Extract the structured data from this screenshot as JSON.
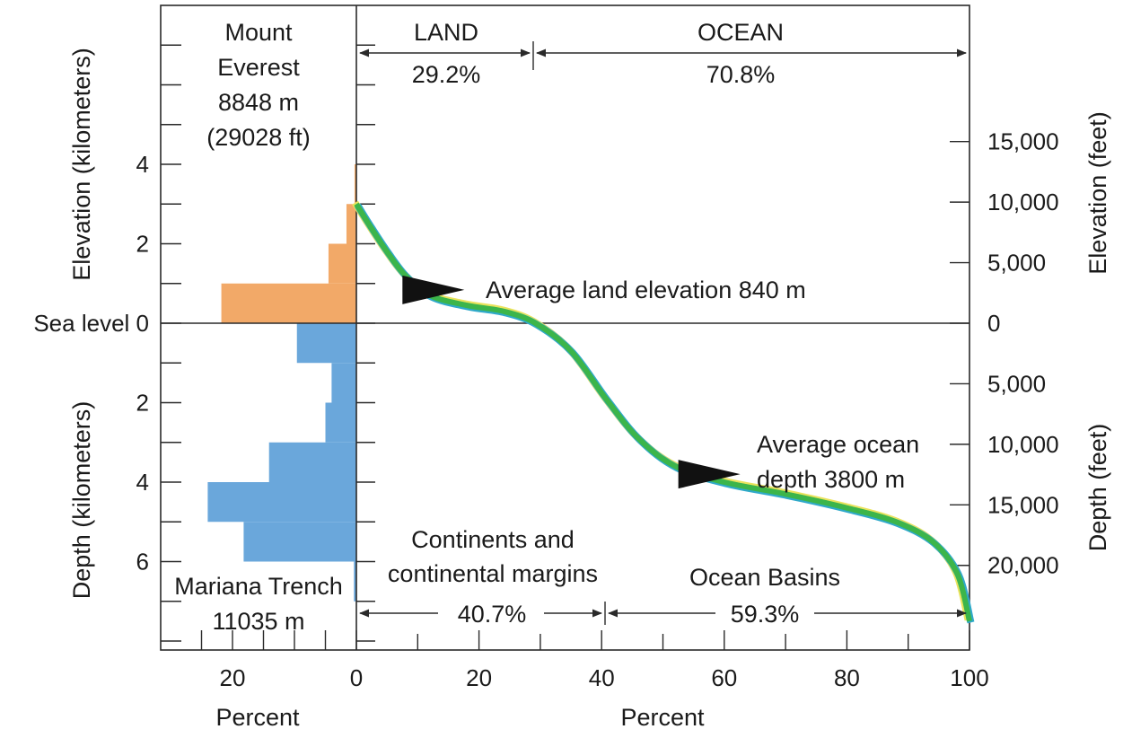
{
  "colors": {
    "land": "#f2a968",
    "ocean": "#6aa7db",
    "curve": "#3cb54a",
    "curve_edge_top": "#e9e35c",
    "curve_edge_bottom": "#2fa9c9",
    "axis": "#2a2a2a",
    "marker": "#111111"
  },
  "chart_data": {
    "type": "area",
    "title": "",
    "left_histogram": {
      "xlabel": "Percent",
      "x_ticks": [
        20,
        0
      ],
      "xlim": [
        30,
        0
      ],
      "bin_size_km": 1,
      "land": [
        {
          "from_km": 0,
          "to_km": 1,
          "percent": 21.8
        },
        {
          "from_km": 1,
          "to_km": 2,
          "percent": 4.5
        },
        {
          "from_km": 2,
          "to_km": 3,
          "percent": 1.6
        },
        {
          "from_km": 3,
          "to_km": 4,
          "percent": 0.3
        }
      ],
      "ocean": [
        {
          "from_km": 0,
          "to_km": 1,
          "percent": 9.6
        },
        {
          "from_km": 1,
          "to_km": 2,
          "percent": 4.0
        },
        {
          "from_km": 2,
          "to_km": 3,
          "percent": 5.0
        },
        {
          "from_km": 3,
          "to_km": 4,
          "percent": 14.1
        },
        {
          "from_km": 4,
          "to_km": 5,
          "percent": 24.0
        },
        {
          "from_km": 5,
          "to_km": 6,
          "percent": 18.2
        },
        {
          "from_km": 6,
          "to_km": 7,
          "percent": 0.4
        }
      ]
    },
    "hypsometric_curve": {
      "xlabel": "Percent",
      "xlim": [
        0,
        100
      ],
      "x_ticks": [
        0,
        20,
        40,
        60,
        80,
        100
      ],
      "points": [
        {
          "x": 0,
          "y": 3.0
        },
        {
          "x": 2,
          "y": 2.5
        },
        {
          "x": 5,
          "y": 1.8
        },
        {
          "x": 8,
          "y": 1.2
        },
        {
          "x": 12,
          "y": 0.7
        },
        {
          "x": 18,
          "y": 0.45
        },
        {
          "x": 24,
          "y": 0.3
        },
        {
          "x": 29.2,
          "y": 0.0
        },
        {
          "x": 35,
          "y": -0.7
        },
        {
          "x": 40.7,
          "y": -1.9
        },
        {
          "x": 46,
          "y": -2.9
        },
        {
          "x": 52,
          "y": -3.6
        },
        {
          "x": 60,
          "y": -4.0
        },
        {
          "x": 70,
          "y": -4.3
        },
        {
          "x": 80,
          "y": -4.65
        },
        {
          "x": 88,
          "y": -5.0
        },
        {
          "x": 94,
          "y": -5.5
        },
        {
          "x": 98,
          "y": -6.3
        },
        {
          "x": 100,
          "y": -7.5
        }
      ]
    },
    "y_axis_km": {
      "upper_label": "Elevation (kilometers)",
      "lower_label": "Depth (kilometers)",
      "ticks": [
        {
          "value": 4,
          "label": "4"
        },
        {
          "value": 2,
          "label": "2"
        },
        {
          "value": 0,
          "label": "Sea level 0"
        },
        {
          "value": -2,
          "label": "2"
        },
        {
          "value": -4,
          "label": "4"
        },
        {
          "value": -6,
          "label": "6"
        }
      ],
      "ylim": [
        -8.1,
        8.0
      ]
    },
    "y_axis_feet": {
      "upper_label": "Elevation (feet)",
      "lower_label": "Depth (feet)",
      "ticks": [
        {
          "value": 15000,
          "label": "15,000"
        },
        {
          "value": 10000,
          "label": "10,000"
        },
        {
          "value": 5000,
          "label": "5,000"
        },
        {
          "value": 0,
          "label": "0"
        },
        {
          "value": -5000,
          "label": "5,000"
        },
        {
          "value": -10000,
          "label": "10,000"
        },
        {
          "value": -15000,
          "label": "15,000"
        },
        {
          "value": -20000,
          "label": "20,000"
        }
      ]
    },
    "annotations": {
      "everest": [
        "Mount",
        "Everest",
        "8848 m",
        "(29028 ft)"
      ],
      "trench": [
        "Mariana Trench",
        "11035 m"
      ],
      "land_header": "LAND",
      "land_pct": "29.2%",
      "ocean_header": "OCEAN",
      "ocean_pct": "70.8%",
      "avg_land": "Average land elevation 840 m",
      "avg_land_marker": {
        "x": 10,
        "y": 0.84
      },
      "avg_ocean": [
        "Average ocean",
        "depth 3800 m"
      ],
      "avg_ocean_marker": {
        "x": 55,
        "y": -3.8
      },
      "continents": [
        "Continents and",
        "continental margins"
      ],
      "continents_pct": "40.7%",
      "basins": "Ocean Basins",
      "basins_pct": "59.3%"
    }
  }
}
